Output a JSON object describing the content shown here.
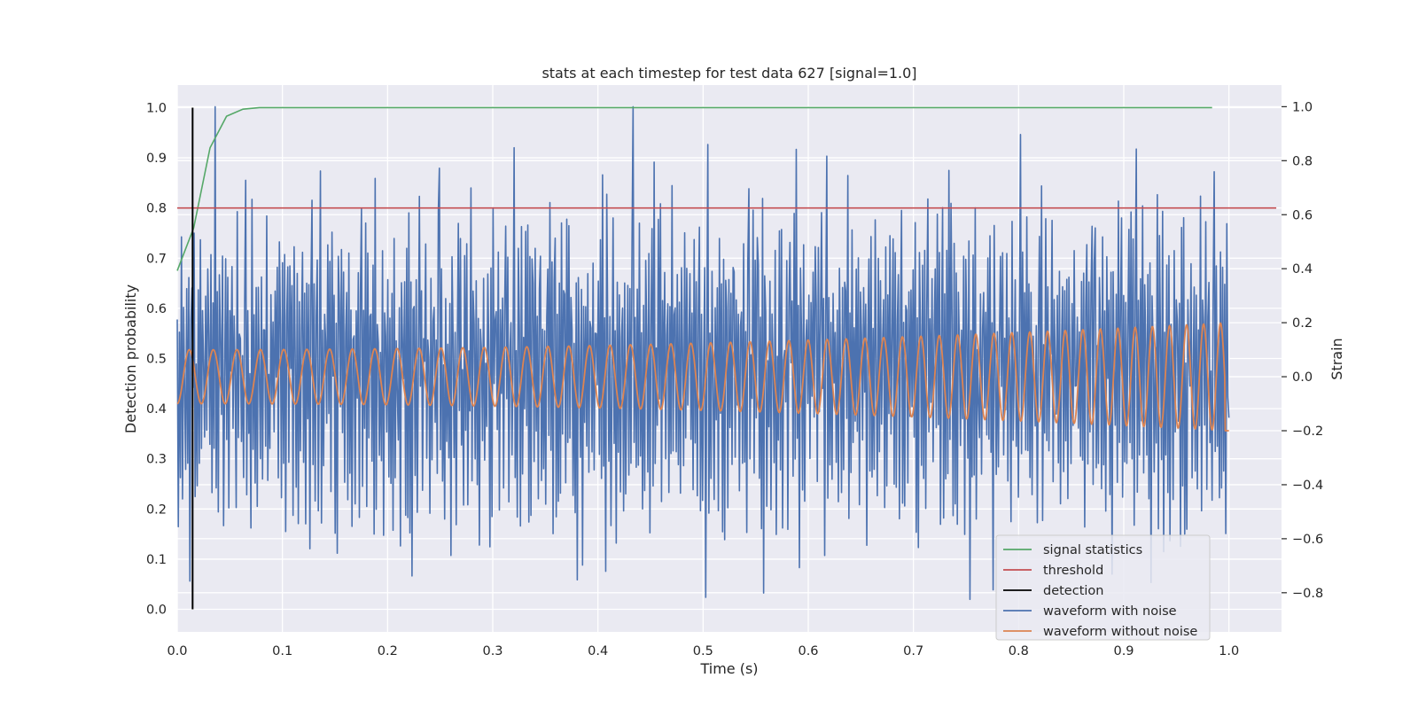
{
  "chart_data": {
    "type": "line",
    "title": "stats at each timestep for test data 627 [signal=1.0]",
    "xlabel": "Time (s)",
    "ylabel": "Detection probability",
    "y2label": "Strain",
    "xlim": [
      0.0,
      1.05
    ],
    "ylim": [
      -0.045,
      1.045
    ],
    "y2lim": [
      -0.945,
      1.08
    ],
    "xticks": [
      "0.0",
      "0.1",
      "0.2",
      "0.3",
      "0.4",
      "0.5",
      "0.6",
      "0.7",
      "0.8",
      "0.9",
      "1.0"
    ],
    "yticks": [
      "0.0",
      "0.1",
      "0.2",
      "0.3",
      "0.4",
      "0.5",
      "0.6",
      "0.7",
      "0.8",
      "0.9",
      "1.0"
    ],
    "y2ticks": [
      "−0.8",
      "−0.6",
      "−0.4",
      "−0.2",
      "0.0",
      "0.2",
      "0.4",
      "0.6",
      "0.8",
      "1.0"
    ],
    "y2tick_values": [
      -0.8,
      -0.6,
      -0.4,
      -0.2,
      0.0,
      0.2,
      0.4,
      0.6,
      0.8,
      1.0
    ],
    "grid": true,
    "legend_position": "lower-right",
    "series": [
      {
        "name": "signal statistics",
        "axis": "left",
        "color": "#55a868",
        "x": [
          0.0,
          0.0156,
          0.0312,
          0.0469,
          0.0625,
          0.0781,
          0.0938,
          0.125,
          0.25,
          0.5,
          0.75,
          0.984
        ],
        "y": [
          0.675,
          0.76,
          0.92,
          0.983,
          0.997,
          1.0,
          1.0,
          1.0,
          1.0,
          1.0,
          1.0,
          1.0
        ]
      },
      {
        "name": "threshold",
        "axis": "left",
        "color": "#c44e52",
        "x": [
          0.0,
          1.045
        ],
        "y": [
          0.8,
          0.8
        ]
      },
      {
        "name": "detection",
        "axis": "left",
        "color": "#000000",
        "x": [
          0.0146,
          0.0146
        ],
        "y": [
          0.0,
          1.0
        ]
      },
      {
        "name": "waveform with noise",
        "axis": "right",
        "color": "#4c72b0",
        "sample_count": 1000,
        "y": [
          0.4,
          -0.65,
          0.42,
          -0.55,
          0.7,
          -0.68,
          0.35,
          0.1,
          -0.5,
          0.25,
          -0.4,
          0.6,
          -0.9,
          0.45,
          0.3,
          -0.2,
          0.55,
          -0.7,
          0.15,
          -0.35,
          0.5,
          -0.45,
          0.62,
          -0.6,
          0.2,
          0.05,
          -0.3,
          0.5,
          -0.55,
          0.4,
          0.33,
          -0.1,
          0.45,
          -0.6,
          0.55,
          -0.4,
          1.0,
          -0.5,
          0.35,
          -0.85,
          0.6,
          0.1,
          -0.3,
          0.4,
          -0.5,
          0.2,
          0.55,
          -0.25,
          0.45,
          -0.5,
          0.3,
          -0.15,
          0.6,
          -0.45,
          0.35,
          0.2,
          -0.55,
          0.5,
          -0.3,
          0.1,
          0.45,
          -0.35,
          0.25,
          -0.6,
          0.55,
          0.99,
          -0.5,
          0.4,
          -0.3,
          0.2,
          -0.4,
          0.6,
          -0.25,
          0.35,
          -0.55,
          0.3,
          -0.7,
          0.5,
          0.1,
          -0.35,
          0.4,
          -0.6,
          0.25,
          0.45,
          -0.3,
          1.0,
          -0.5,
          0.2,
          -0.4,
          0.55,
          -0.2,
          0.5,
          -0.45,
          0.3,
          -0.1,
          0.65,
          -0.55,
          0.4,
          0.15,
          -0.4,
          0.5,
          -0.3,
          0.55,
          -0.6,
          0.2,
          0.45,
          -0.35,
          0.6,
          -0.25,
          0.3,
          -0.5,
          0.45,
          0.1,
          -0.55,
          0.5,
          -0.4,
          0.62,
          -0.3,
          0.2,
          0.4,
          -0.45,
          0.35,
          -0.6,
          0.55,
          -0.2,
          0.45,
          -0.5,
          0.3,
          0.6,
          -0.35,
          0.4,
          -0.55,
          0.25,
          0.5,
          -0.65,
          0.35,
          0.88,
          -0.4,
          0.3,
          -0.5,
          0.45,
          0.2,
          -0.6,
          0.55,
          -0.3,
          0.4,
          -0.45,
          0.6,
          -0.2,
          0.5,
          -0.55,
          0.35,
          -0.7,
          0.45,
          0.25,
          -0.4,
          0.6,
          -0.35,
          0.5,
          -0.5,
          0.3,
          0.62,
          -0.45,
          0.4,
          -0.25,
          0.55,
          -0.6,
          0.35,
          0.5,
          -0.4,
          0.65,
          -0.3,
          0.45,
          -0.55,
          0.3,
          0.85,
          -0.5,
          0.4,
          -0.35,
          0.55,
          -0.45,
          0.6,
          -0.3,
          0.5
        ]
      },
      {
        "name": "waveform without noise",
        "axis": "right",
        "color": "#dd8452",
        "cycles": 53,
        "start_amplitude": 0.1,
        "end_amplitude": 0.2,
        "end_value": -0.2
      }
    ]
  },
  "legend": {
    "items": [
      {
        "label": "signal statistics",
        "color": "#55a868"
      },
      {
        "label": "threshold",
        "color": "#c44e52"
      },
      {
        "label": "detection",
        "color": "#000000"
      },
      {
        "label": "waveform with noise",
        "color": "#4c72b0"
      },
      {
        "label": "waveform without noise",
        "color": "#dd8452"
      }
    ]
  }
}
